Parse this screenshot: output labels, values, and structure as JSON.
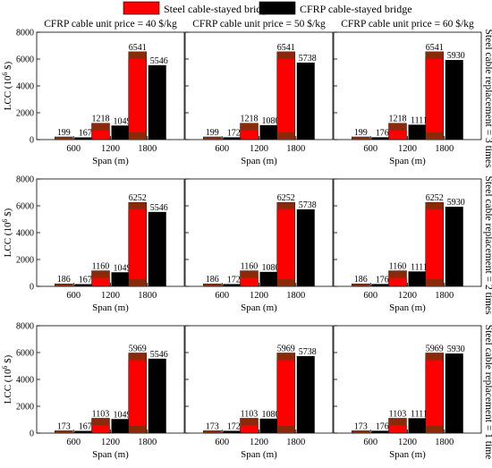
{
  "legend": [
    {
      "label": "Steel cable-stayed bridge",
      "color": "#ff0000"
    },
    {
      "label": "CFRP cable-stayed bridge",
      "color": "#000000"
    }
  ],
  "columns": [
    "CFRP cable unit price = 40 $/kg",
    "CFRP cable unit price = 50 $/kg",
    "CFRP cable unit price = 60 $/kg"
  ],
  "rows": [
    "Steel cable replacement = 3 times",
    "Steel cable replacement = 2 times",
    "Steel cable replacement = 1 time"
  ],
  "ylabel_main": "LCC (10",
  "ylabel_sup": "6",
  "ylabel_tail": " $)",
  "xlabel": "Span (m)",
  "chart_data": {
    "type": "bar",
    "categories": [
      "600",
      "1200",
      "1800"
    ],
    "xlabel": "Span (m)",
    "ylabel": "LCC (10^6 $)",
    "ylim": [
      0,
      8000
    ],
    "yticks": [
      0,
      2000,
      4000,
      6000,
      8000
    ],
    "series_names": [
      "Steel cable-stayed bridge",
      "CFRP cable-stayed bridge"
    ],
    "colors": {
      "steel": "#ff0000",
      "steel_dark": "#8b2a0a",
      "cfrp": "#000000"
    },
    "panels": [
      {
        "row": 0,
        "col": 0,
        "steel": [
          199,
          1218,
          6541
        ],
        "cfrp": [
          167,
          1049,
          5546
        ]
      },
      {
        "row": 0,
        "col": 1,
        "steel": [
          199,
          1218,
          6541
        ],
        "cfrp": [
          172,
          1080,
          5738
        ]
      },
      {
        "row": 0,
        "col": 2,
        "steel": [
          199,
          1218,
          6541
        ],
        "cfrp": [
          176,
          1111,
          5930
        ]
      },
      {
        "row": 1,
        "col": 0,
        "steel": [
          186,
          1160,
          6252
        ],
        "cfrp": [
          167,
          1049,
          5546
        ]
      },
      {
        "row": 1,
        "col": 1,
        "steel": [
          186,
          1160,
          6252
        ],
        "cfrp": [
          172,
          1080,
          5738
        ]
      },
      {
        "row": 1,
        "col": 2,
        "steel": [
          186,
          1160,
          6252
        ],
        "cfrp": [
          176,
          1111,
          5930
        ]
      },
      {
        "row": 2,
        "col": 0,
        "steel": [
          173,
          1103,
          5969
        ],
        "cfrp": [
          167,
          1049,
          5546
        ]
      },
      {
        "row": 2,
        "col": 1,
        "steel": [
          173,
          1103,
          5969
        ],
        "cfrp": [
          172,
          1080,
          5738
        ]
      },
      {
        "row": 2,
        "col": 2,
        "steel": [
          173,
          1103,
          5969
        ],
        "cfrp": [
          176,
          1111,
          5930
        ]
      }
    ]
  }
}
